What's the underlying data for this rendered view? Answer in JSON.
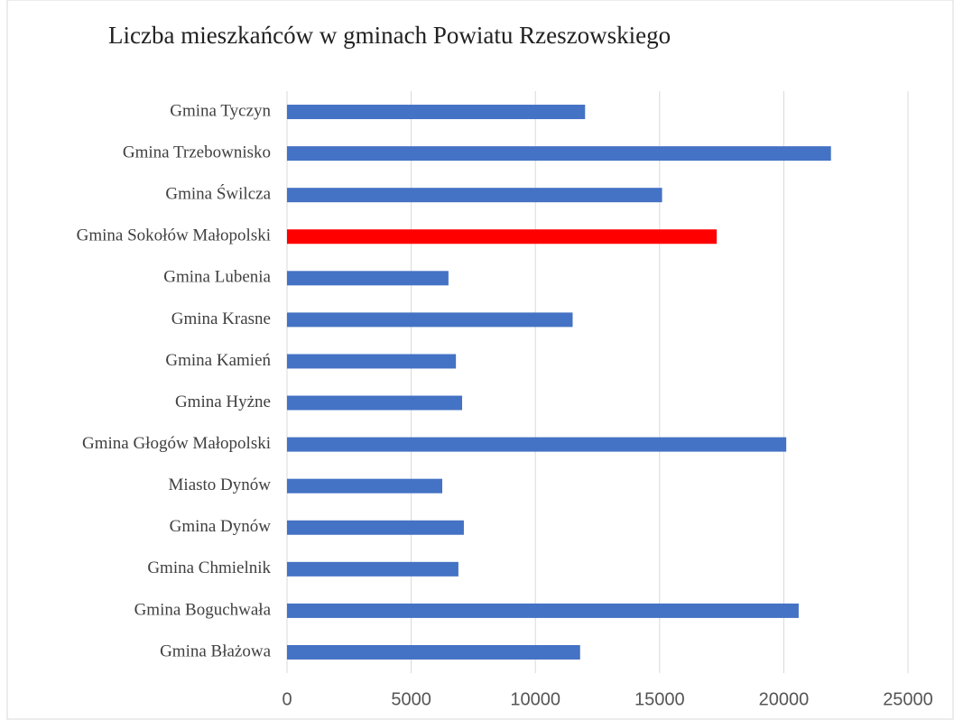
{
  "chart_data": {
    "type": "barh",
    "title": "Liczba mieszkańców w gminach Powiatu Rzeszowskiego",
    "categories": [
      "Gmina Tyczyn",
      "Gmina Trzebownisko",
      "Gmina Świlcza",
      "Gmina Sokołów Małopolski",
      "Gmina Lubenia",
      "Gmina Krasne",
      "Gmina Kamień",
      "Gmina Hyżne",
      "Gmina Głogów Małopolski",
      "Miasto Dynów",
      "Gmina Dynów",
      "Gmina Chmielnik",
      "Gmina Boguchwała",
      "Gmina Błażowa"
    ],
    "values": [
      12000,
      21900,
      15100,
      17300,
      6500,
      11500,
      6800,
      7050,
      20100,
      6250,
      7120,
      6900,
      20600,
      11800
    ],
    "colors": [
      "#4472c4",
      "#4472c4",
      "#4472c4",
      "#ff0000",
      "#4472c4",
      "#4472c4",
      "#4472c4",
      "#4472c4",
      "#4472c4",
      "#4472c4",
      "#4472c4",
      "#4472c4",
      "#4472c4",
      "#4472c4"
    ],
    "xlim": [
      0,
      25000
    ],
    "xticks": [
      0,
      5000,
      10000,
      15000,
      20000,
      25000
    ],
    "grid": true
  }
}
